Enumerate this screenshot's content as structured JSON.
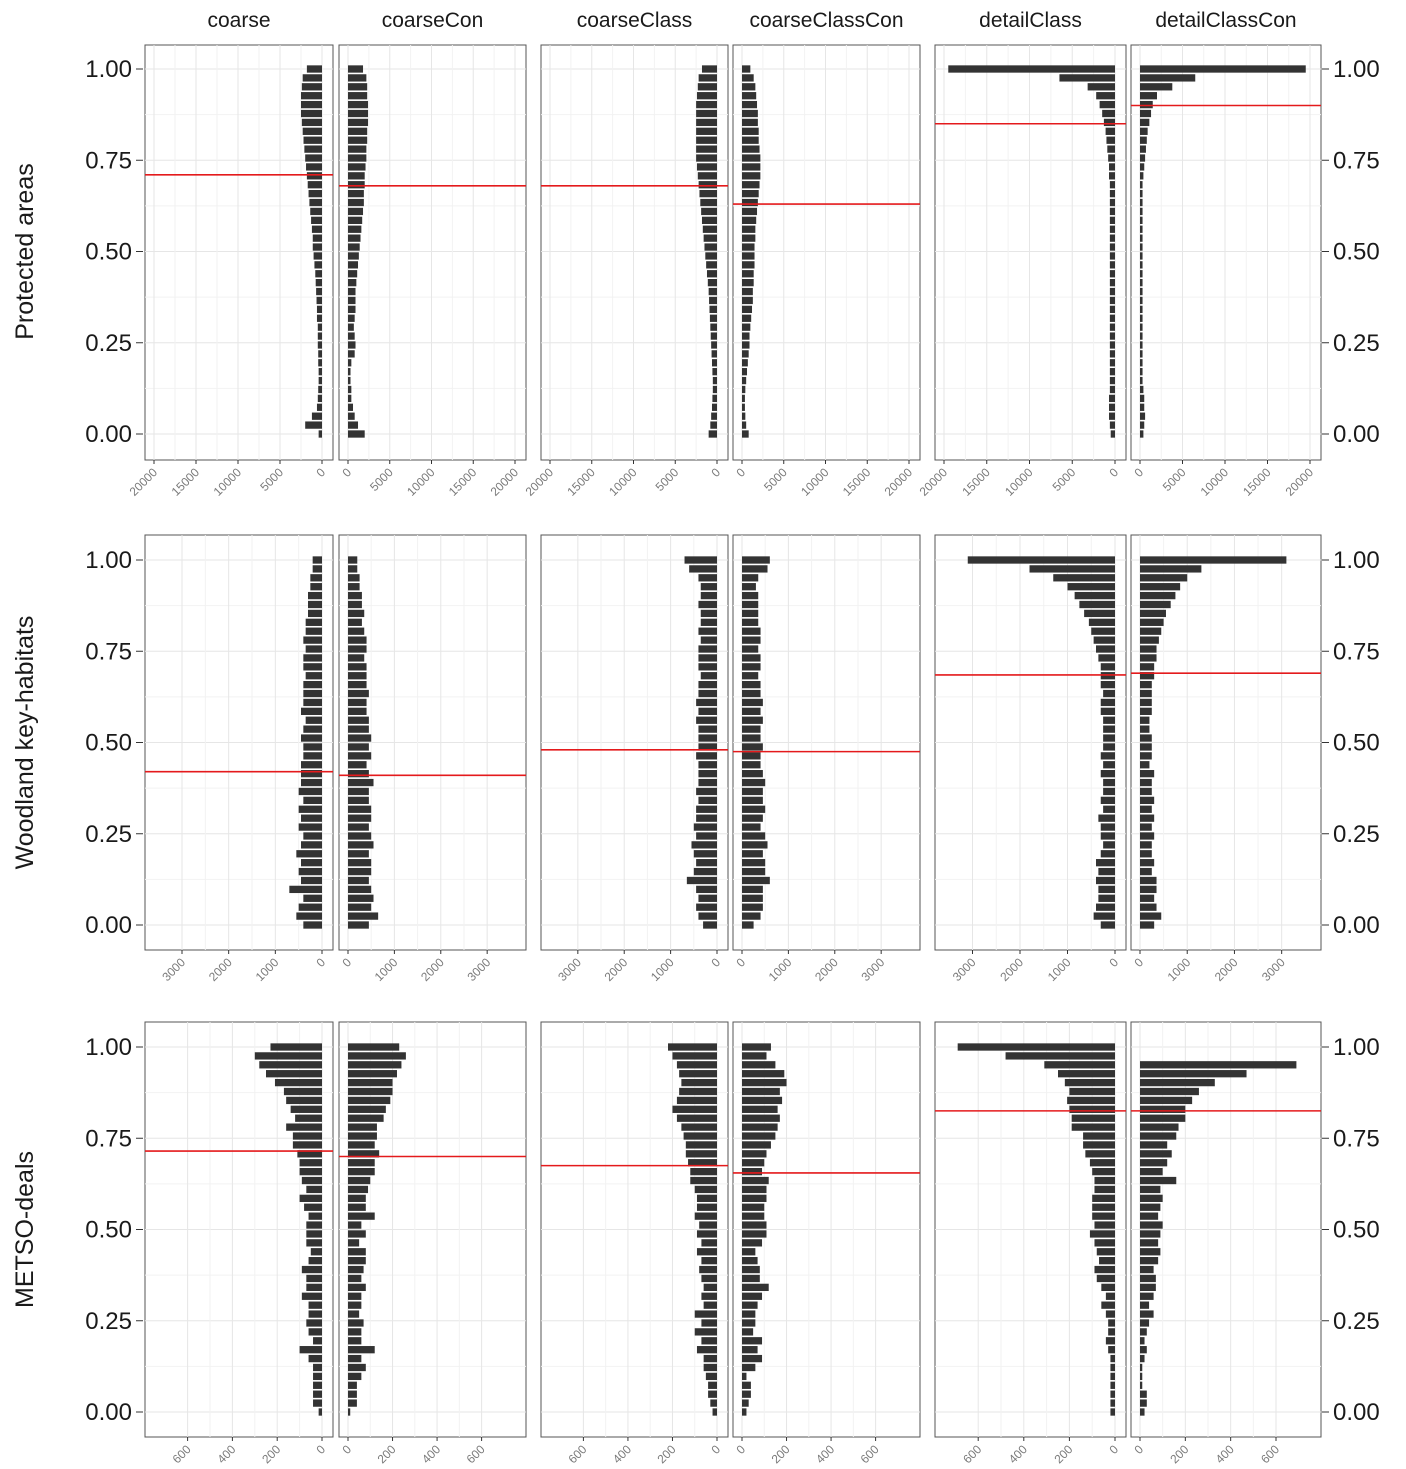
{
  "chart_data": {
    "type": "bar",
    "orientation": "horizontal-mirrored",
    "columns": [
      "coarse",
      "coarseCon",
      "coarseClass",
      "coarseClassCon",
      "detailClass",
      "detailClassCon"
    ],
    "rows": [
      {
        "label": "Protected areas",
        "xlim": [
          0,
          20000
        ],
        "xticks": [
          0,
          5000,
          10000,
          15000,
          20000
        ],
        "xtick_labels": [
          "0",
          "5000",
          "10000",
          "15000",
          "20000"
        ],
        "panels": [
          {
            "method": "coarse",
            "threshold": 0.71,
            "bar_values": [
              400,
              2000,
              1200,
              600,
              500,
              450,
              400,
              400,
              450,
              450,
              500,
              500,
              500,
              600,
              600,
              650,
              700,
              750,
              800,
              900,
              1000,
              1100,
              1100,
              1200,
              1300,
              1400,
              1500,
              1600,
              1700,
              1800,
              1900,
              2000,
              2100,
              2200,
              2300,
              2400,
              2500,
              2500,
              2500,
              2400,
              2300,
              1800
            ]
          },
          {
            "method": "coarseCon",
            "threshold": 0.68,
            "bar_values": [
              2000,
              1200,
              800,
              600,
              400,
              400,
              300,
              300,
              400,
              800,
              900,
              800,
              700,
              800,
              900,
              900,
              900,
              1000,
              1100,
              1200,
              1300,
              1400,
              1500,
              1600,
              1700,
              1800,
              1900,
              1900,
              2000,
              2000,
              2100,
              2200,
              2200,
              2300,
              2300,
              2400,
              2400,
              2400,
              2300,
              2300,
              2200,
              1800
            ]
          },
          {
            "method": "coarseClass",
            "threshold": 0.68,
            "bar_values": [
              1000,
              800,
              700,
              600,
              550,
              500,
              500,
              550,
              600,
              650,
              700,
              750,
              800,
              850,
              900,
              950,
              1000,
              1100,
              1200,
              1300,
              1400,
              1500,
              1600,
              1700,
              1800,
              1900,
              2000,
              2100,
              2200,
              2300,
              2400,
              2500,
              2500,
              2500,
              2500,
              2500,
              2500,
              2500,
              2400,
              2300,
              2200,
              1800
            ]
          },
          {
            "method": "coarseClassCon",
            "threshold": 0.63,
            "bar_values": [
              800,
              500,
              400,
              350,
              350,
              400,
              500,
              600,
              700,
              800,
              900,
              900,
              1000,
              1100,
              1200,
              1300,
              1300,
              1400,
              1400,
              1500,
              1500,
              1500,
              1600,
              1600,
              1700,
              1800,
              1900,
              2000,
              2100,
              2200,
              2200,
              2200,
              2100,
              2000,
              2000,
              1900,
              1900,
              1800,
              1700,
              1600,
              1400,
              1000
            ]
          },
          {
            "method": "detailClass",
            "threshold": 0.85,
            "bar_values": [
              500,
              600,
              700,
              700,
              700,
              600,
              600,
              600,
              600,
              600,
              600,
              600,
              600,
              600,
              600,
              600,
              600,
              600,
              600,
              600,
              600,
              600,
              600,
              600,
              600,
              600,
              600,
              600,
              600,
              700,
              700,
              800,
              900,
              1000,
              1100,
              1300,
              1500,
              1800,
              2200,
              3200,
              6500,
              19500
            ]
          },
          {
            "method": "detailClassCon",
            "threshold": 0.9,
            "bar_values": [
              400,
              500,
              600,
              500,
              500,
              400,
              300,
              300,
              300,
              300,
              300,
              300,
              300,
              300,
              300,
              300,
              300,
              300,
              300,
              300,
              300,
              300,
              300,
              300,
              300,
              300,
              300,
              300,
              300,
              400,
              500,
              600,
              700,
              800,
              900,
              1100,
              1300,
              1500,
              2000,
              3800,
              6500,
              19500
            ]
          }
        ]
      },
      {
        "label": "Woodland key-habitats",
        "xlim": [
          0,
          3600
        ],
        "xticks": [
          0,
          1000,
          2000,
          3000
        ],
        "xtick_labels": [
          "0",
          "1000",
          "2000",
          "3000"
        ],
        "panels": [
          {
            "method": "coarse",
            "threshold": 0.42,
            "bar_values": [
              400,
              550,
              500,
              400,
              700,
              450,
              500,
              450,
              550,
              450,
              400,
              500,
              450,
              500,
              400,
              500,
              450,
              450,
              450,
              400,
              400,
              450,
              400,
              350,
              450,
              400,
              400,
              400,
              350,
              400,
              400,
              350,
              400,
              350,
              350,
              300,
              300,
              300,
              250,
              250,
              200,
              200
            ]
          },
          {
            "method": "coarseCon",
            "threshold": 0.41,
            "bar_values": [
              450,
              650,
              500,
              550,
              500,
              450,
              500,
              500,
              450,
              550,
              500,
              450,
              500,
              500,
              450,
              450,
              550,
              450,
              400,
              500,
              450,
              500,
              450,
              450,
              400,
              400,
              450,
              400,
              400,
              400,
              350,
              400,
              400,
              350,
              300,
              350,
              300,
              300,
              250,
              250,
              200,
              200
            ]
          },
          {
            "method": "coarseClass",
            "threshold": 0.48,
            "bar_values": [
              300,
              400,
              450,
              400,
              450,
              650,
              500,
              450,
              500,
              550,
              450,
              500,
              450,
              450,
              400,
              450,
              400,
              400,
              400,
              450,
              400,
              400,
              400,
              450,
              400,
              450,
              400,
              400,
              350,
              400,
              400,
              400,
              350,
              400,
              350,
              350,
              400,
              350,
              350,
              400,
              600,
              700
            ]
          },
          {
            "method": "coarseClassCon",
            "threshold": 0.475,
            "bar_values": [
              250,
              400,
              450,
              450,
              450,
              600,
              500,
              500,
              450,
              550,
              500,
              400,
              450,
              500,
              450,
              450,
              500,
              450,
              400,
              400,
              450,
              400,
              400,
              450,
              400,
              450,
              400,
              400,
              350,
              400,
              400,
              350,
              400,
              400,
              350,
              350,
              350,
              350,
              300,
              350,
              550,
              600
            ]
          },
          {
            "method": "detailClass",
            "threshold": 0.685,
            "bar_values": [
              300,
              450,
              400,
              350,
              350,
              400,
              350,
              400,
              300,
              250,
              300,
              300,
              350,
              250,
              300,
              250,
              250,
              300,
              250,
              300,
              250,
              250,
              250,
              250,
              300,
              300,
              250,
              300,
              300,
              300,
              350,
              400,
              450,
              500,
              550,
              650,
              750,
              850,
              1000,
              1300,
              1800,
              3100
            ]
          },
          {
            "method": "detailClassCon",
            "threshold": 0.69,
            "bar_values": [
              300,
              450,
              350,
              300,
              350,
              350,
              250,
              300,
              250,
              250,
              300,
              250,
              300,
              250,
              300,
              250,
              250,
              300,
              200,
              250,
              250,
              250,
              200,
              200,
              250,
              250,
              250,
              250,
              300,
              300,
              350,
              350,
              400,
              450,
              500,
              550,
              650,
              750,
              850,
              1000,
              1300,
              3100
            ]
          }
        ]
      },
      {
        "label": "METSO-deals",
        "xlim": [
          0,
          750
        ],
        "xticks": [
          0,
          200,
          400,
          600
        ],
        "xtick_labels": [
          "0",
          "200",
          "400",
          "600"
        ],
        "panels": [
          {
            "method": "coarse",
            "threshold": 0.715,
            "bar_values": [
              15,
              40,
              40,
              40,
              40,
              40,
              60,
              100,
              40,
              60,
              70,
              60,
              60,
              90,
              70,
              70,
              90,
              60,
              50,
              70,
              70,
              70,
              60,
              80,
              100,
              70,
              90,
              100,
              100,
              110,
              130,
              130,
              160,
              120,
              140,
              160,
              170,
              210,
              250,
              280,
              300,
              230
            ]
          },
          {
            "method": "coarseCon",
            "threshold": 0.7,
            "bar_values": [
              10,
              40,
              40,
              40,
              60,
              80,
              60,
              120,
              60,
              60,
              70,
              50,
              60,
              60,
              80,
              60,
              70,
              80,
              80,
              50,
              80,
              60,
              120,
              80,
              80,
              90,
              100,
              120,
              120,
              140,
              120,
              130,
              130,
              160,
              170,
              190,
              200,
              200,
              220,
              240,
              260,
              230
            ]
          },
          {
            "method": "coarseClass",
            "threshold": 0.675,
            "bar_values": [
              20,
              30,
              40,
              40,
              50,
              60,
              60,
              90,
              70,
              100,
              70,
              100,
              60,
              70,
              60,
              70,
              80,
              70,
              90,
              70,
              90,
              80,
              100,
              90,
              90,
              100,
              120,
              120,
              130,
              140,
              140,
              150,
              160,
              180,
              200,
              180,
              170,
              160,
              170,
              180,
              200,
              220
            ]
          },
          {
            "method": "coarseClassCon",
            "threshold": 0.655,
            "bar_values": [
              20,
              30,
              40,
              40,
              20,
              60,
              90,
              70,
              90,
              50,
              60,
              60,
              70,
              90,
              120,
              80,
              80,
              70,
              60,
              90,
              110,
              110,
              100,
              100,
              110,
              110,
              120,
              90,
              100,
              110,
              130,
              150,
              160,
              170,
              160,
              180,
              170,
              200,
              190,
              150,
              110,
              130
            ]
          },
          {
            "method": "detailClass",
            "threshold": 0.825,
            "bar_values": [
              20,
              20,
              20,
              20,
              20,
              20,
              20,
              30,
              40,
              30,
              30,
              40,
              60,
              40,
              60,
              80,
              90,
              70,
              80,
              90,
              110,
              90,
              100,
              100,
              100,
              90,
              90,
              100,
              110,
              130,
              140,
              140,
              190,
              190,
              200,
              210,
              200,
              220,
              250,
              310,
              480,
              690
            ]
          },
          {
            "method": "detailClassCon",
            "threshold": 0.825,
            "bar_values": [
              20,
              30,
              30,
              10,
              10,
              10,
              20,
              30,
              20,
              30,
              40,
              60,
              40,
              60,
              70,
              70,
              60,
              80,
              90,
              80,
              90,
              100,
              80,
              90,
              100,
              90,
              160,
              100,
              120,
              140,
              120,
              160,
              170,
              200,
              200,
              230,
              260,
              330,
              470,
              690,
              0,
              0
            ]
          }
        ]
      }
    ],
    "ylim": [
      0,
      1
    ],
    "yticks": [
      0,
      0.25,
      0.5,
      0.75,
      1
    ],
    "ytick_labels": [
      "0.00",
      "0.25",
      "0.50",
      "0.75",
      "1.00"
    ],
    "grid": true,
    "bar_color": "#333333",
    "threshold_color": "#e41a1c"
  }
}
